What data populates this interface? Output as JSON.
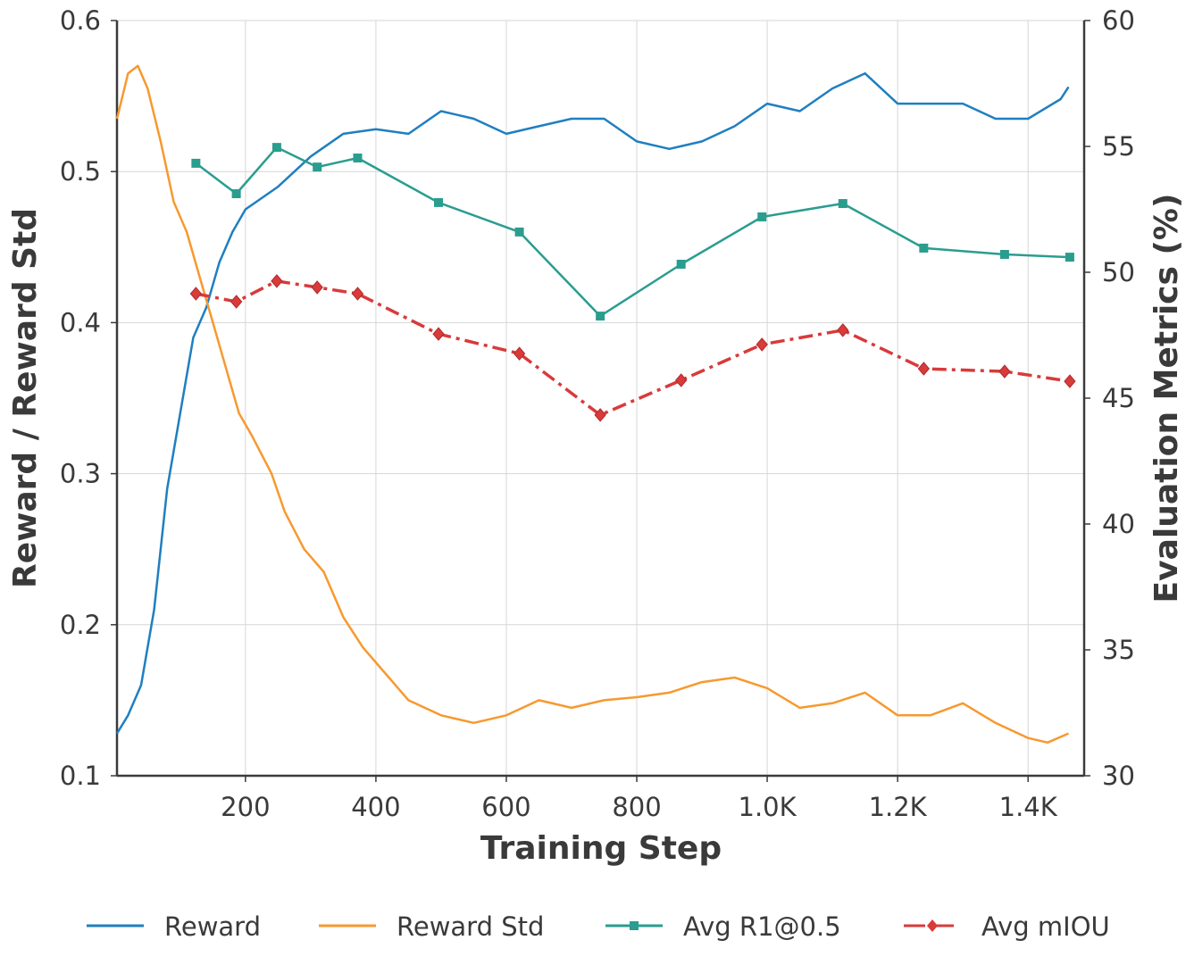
{
  "chart_data": {
    "type": "line",
    "xlabel": "Training Step",
    "ylabel": "Reward / Reward Std",
    "ylabel_right": "Evaluation Metrics (%)",
    "xlim": [
      3,
      1486
    ],
    "ylim": [
      0.1,
      0.6
    ],
    "ylim_right": [
      30,
      60
    ],
    "x_ticks": [
      200,
      400,
      600,
      800,
      1000,
      1200,
      1400
    ],
    "x_tick_labels": [
      "200",
      "400",
      "600",
      "800",
      "1.0K",
      "1.2K",
      "1.4K"
    ],
    "y_ticks": [
      0.1,
      0.2,
      0.3,
      0.4,
      0.5,
      0.6
    ],
    "y_tick_labels": [
      "0.1",
      "0.2",
      "0.3",
      "0.4",
      "0.5",
      "0.6"
    ],
    "y_right_ticks": [
      30,
      35,
      40,
      45,
      50,
      55,
      60
    ],
    "y_right_tick_labels": [
      "30",
      "35",
      "40",
      "45",
      "50",
      "55",
      "60"
    ],
    "grid": true,
    "legend_position": "bottom",
    "series": [
      {
        "name": "Reward",
        "axis": "left",
        "color": "#1f7fc0",
        "style": "solid",
        "marker": "none",
        "x": [
          3,
          20,
          40,
          60,
          80,
          100,
          120,
          140,
          160,
          180,
          200,
          250,
          300,
          350,
          400,
          450,
          500,
          550,
          600,
          650,
          700,
          750,
          800,
          850,
          900,
          950,
          1000,
          1050,
          1100,
          1150,
          1200,
          1250,
          1300,
          1350,
          1400,
          1450,
          1462
        ],
        "y": [
          0.128,
          0.14,
          0.16,
          0.21,
          0.29,
          0.34,
          0.39,
          0.41,
          0.44,
          0.46,
          0.475,
          0.49,
          0.51,
          0.525,
          0.528,
          0.525,
          0.54,
          0.535,
          0.525,
          0.53,
          0.535,
          0.535,
          0.52,
          0.515,
          0.52,
          0.53,
          0.545,
          0.54,
          0.555,
          0.565,
          0.545,
          0.545,
          0.545,
          0.535,
          0.535,
          0.548,
          0.556
        ]
      },
      {
        "name": "Reward Std",
        "axis": "left",
        "color": "#f7992f",
        "style": "solid",
        "marker": "none",
        "x": [
          3,
          20,
          35,
          50,
          70,
          90,
          110,
          130,
          150,
          170,
          190,
          210,
          240,
          260,
          290,
          320,
          350,
          380,
          420,
          450,
          500,
          550,
          600,
          650,
          700,
          750,
          800,
          850,
          900,
          950,
          1000,
          1050,
          1100,
          1150,
          1200,
          1250,
          1300,
          1350,
          1400,
          1430,
          1462
        ],
        "y": [
          0.535,
          0.565,
          0.57,
          0.555,
          0.52,
          0.48,
          0.46,
          0.43,
          0.4,
          0.37,
          0.34,
          0.325,
          0.3,
          0.275,
          0.25,
          0.235,
          0.205,
          0.185,
          0.165,
          0.15,
          0.14,
          0.135,
          0.14,
          0.15,
          0.145,
          0.15,
          0.152,
          0.155,
          0.162,
          0.165,
          0.158,
          0.145,
          0.148,
          0.155,
          0.14,
          0.14,
          0.148,
          0.135,
          0.125,
          0.122,
          0.128
        ]
      },
      {
        "name": "Avg R1@0.5",
        "axis": "right",
        "color": "#2a9d8f",
        "style": "solid",
        "marker": "square",
        "x": [
          124,
          186,
          248,
          310,
          372,
          496,
          620,
          744,
          868,
          992,
          1116,
          1240,
          1364,
          1464
        ],
        "y": [
          54.33,
          53.12,
          54.96,
          54.18,
          54.54,
          52.77,
          51.6,
          48.26,
          50.32,
          52.2,
          52.73,
          50.96,
          50.71,
          50.6
        ]
      },
      {
        "name": "Avg mIOU",
        "axis": "right",
        "color": "#d93a3a",
        "style": "dashdot",
        "marker": "diamond",
        "x": [
          124,
          186,
          248,
          310,
          372,
          496,
          620,
          744,
          868,
          992,
          1116,
          1240,
          1364,
          1464
        ],
        "y": [
          49.15,
          48.83,
          49.65,
          49.4,
          49.15,
          47.55,
          46.77,
          44.33,
          45.71,
          47.13,
          47.7,
          46.17,
          46.06,
          45.67
        ]
      }
    ]
  }
}
